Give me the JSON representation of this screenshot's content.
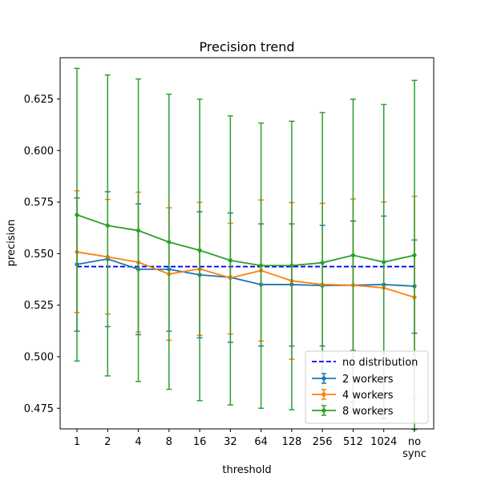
{
  "chart_data": {
    "type": "line",
    "title": "Precision trend",
    "xlabel": "threshold",
    "ylabel": "precision",
    "categories": [
      "1",
      "2",
      "4",
      "8",
      "16",
      "32",
      "64",
      "128",
      "256",
      "512",
      "1024",
      "no\nsync"
    ],
    "ylim": [
      0.465,
      0.645
    ],
    "yticks": [
      "0.475",
      "0.500",
      "0.525",
      "0.550",
      "0.575",
      "0.600",
      "0.625"
    ],
    "baseline": {
      "name": "no distribution",
      "value": 0.5437,
      "color": "#0000ff",
      "style": "dashed"
    },
    "series": [
      {
        "name": "2 workers",
        "color": "#1f77b4",
        "values": [
          0.5448,
          0.5474,
          0.5424,
          0.5424,
          0.5397,
          0.5385,
          0.535,
          0.535,
          0.5345,
          0.5347,
          0.535,
          0.5342
        ],
        "err_low": [
          0.5124,
          0.5146,
          0.5107,
          0.5124,
          0.5092,
          0.507,
          0.5052,
          0.5052,
          0.5052,
          0.503,
          0.5015,
          0.5114
        ],
        "err_high": [
          0.577,
          0.58,
          0.5741,
          0.5722,
          0.5703,
          0.5697,
          0.5644,
          0.5644,
          0.5637,
          0.5658,
          0.5682,
          0.5566
        ]
      },
      {
        "name": "4 workers",
        "color": "#ff7f0e",
        "values": [
          0.5508,
          0.5484,
          0.5458,
          0.5401,
          0.5426,
          0.5382,
          0.5418,
          0.5368,
          0.535,
          0.5347,
          0.5334,
          0.5288
        ],
        "err_low": [
          0.5214,
          0.5207,
          0.512,
          0.508,
          0.5104,
          0.511,
          0.5076,
          0.4988,
          0.4808,
          0.478,
          0.4797,
          0.48
        ],
        "err_high": [
          0.5805,
          0.5763,
          0.5798,
          0.5722,
          0.5749,
          0.5647,
          0.576,
          0.5748,
          0.5744,
          0.5765,
          0.575,
          0.5778
        ]
      },
      {
        "name": "8 workers",
        "color": "#2ca02c",
        "values": [
          0.5688,
          0.5636,
          0.5612,
          0.5556,
          0.5516,
          0.5467,
          0.5442,
          0.5442,
          0.5456,
          0.5492,
          0.5459,
          0.5492
        ],
        "err_low": [
          0.4979,
          0.4907,
          0.488,
          0.4842,
          0.4787,
          0.4766,
          0.475,
          0.4743,
          0.473,
          0.4732,
          0.47,
          0.4647
        ],
        "err_high": [
          0.6398,
          0.6366,
          0.6347,
          0.6273,
          0.6249,
          0.6168,
          0.6133,
          0.6142,
          0.6184,
          0.6249,
          0.6223,
          0.634
        ]
      }
    ],
    "grid": false,
    "legend": "lower-right"
  }
}
